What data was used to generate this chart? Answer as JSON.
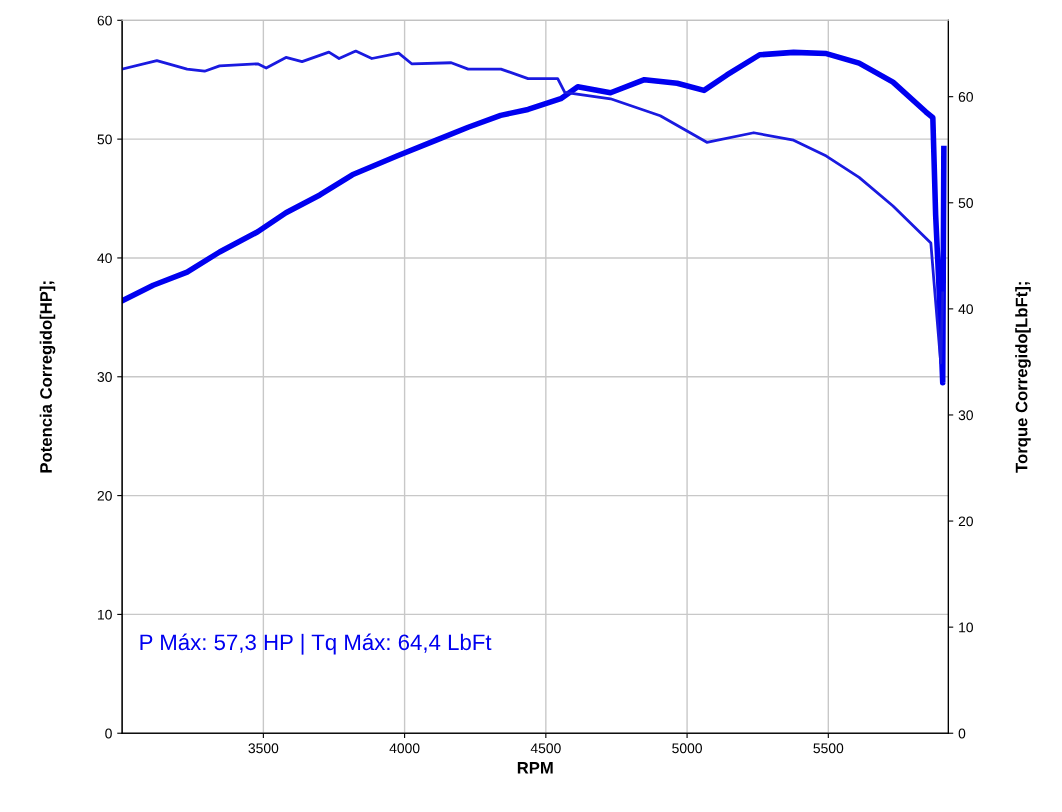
{
  "chart_data": {
    "type": "line",
    "xlabel": "RPM",
    "ylabel": "Potencia Corregido[HP];",
    "y2label": "Torque Corregido[LbFt];",
    "xlim": [
      3000,
      5925
    ],
    "xticks": [
      3500,
      4000,
      4500,
      5000,
      5500
    ],
    "ylim": [
      0,
      60
    ],
    "yticks": [
      0,
      10,
      20,
      30,
      40,
      50,
      60
    ],
    "y2lim": [
      0,
      67.2
    ],
    "y2ticks": [
      0,
      10,
      20,
      30,
      40,
      50,
      60
    ],
    "grid": true,
    "legend": false,
    "marker": "none",
    "line_style": "solid",
    "annotations": [
      "P Máx: 57,3 HP | Tq Máx: 64,4 LbFt"
    ],
    "series": [
      {
        "color": "#0000f0",
        "axis": "y",
        "x": [
          3000,
          3110,
          3230,
          3345,
          3480,
          3580,
          3700,
          3815,
          3975,
          4110,
          4225,
          4340,
          4437,
          4553,
          4613,
          4729,
          4849,
          4965,
          5060,
          5141,
          5257,
          5377,
          5493,
          5609,
          5729,
          5845,
          5870,
          5880,
          5891,
          5905,
          5909
        ],
        "values": [
          36.4,
          37.7,
          38.8,
          40.5,
          42.2,
          43.8,
          45.3,
          47.0,
          48.6,
          49.9,
          51.0,
          52.0,
          52.5,
          53.4,
          54.4,
          53.9,
          55.0,
          54.7,
          54.1,
          55.4,
          57.1,
          57.3,
          57.2,
          56.4,
          54.8,
          52.3,
          51.8,
          43.6,
          38.0,
          29.5,
          49.2
        ]
      },
      {
        "color": "#1a1ae0",
        "axis": "y2",
        "x": [
          3000,
          3123,
          3230,
          3292,
          3345,
          3480,
          3510,
          3580,
          3637,
          3732,
          3768,
          3827,
          3884,
          3979,
          4025,
          4165,
          4225,
          4341,
          4437,
          4542,
          4567,
          4729,
          4905,
          5070,
          5236,
          5377,
          5493,
          5609,
          5729,
          5863,
          5873,
          5898,
          5905
        ],
        "values": [
          62.6,
          63.4,
          62.6,
          62.4,
          62.9,
          63.1,
          62.7,
          63.7,
          63.3,
          64.2,
          63.6,
          64.3,
          63.6,
          64.1,
          63.1,
          63.2,
          62.6,
          62.6,
          61.7,
          61.7,
          60.4,
          59.8,
          58.2,
          55.7,
          56.6,
          55.9,
          54.4,
          52.4,
          49.7,
          46.2,
          42.9,
          34.9,
          41.5
        ]
      }
    ]
  }
}
